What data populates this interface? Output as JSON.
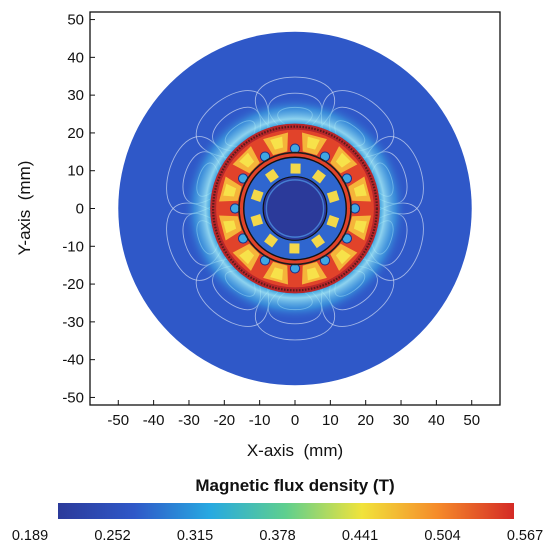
{
  "chart_data": {
    "type": "heatmap",
    "subject": "2D magnetic field plot of a 12-slot stator / 10-pole rotor machine cross-section",
    "xlabel": "X-axis  (mm)",
    "ylabel": "Y-axis  (mm)",
    "xlim": [
      -58,
      58
    ],
    "ylim": [
      -52,
      52
    ],
    "xticks": [
      -50,
      -40,
      -30,
      -20,
      -10,
      0,
      10,
      20,
      30,
      40,
      50
    ],
    "yticks": [
      -50,
      -40,
      -30,
      -20,
      -10,
      0,
      10,
      20,
      30,
      40,
      50
    ],
    "grid": false,
    "domain_outer_radius_mm": 50,
    "stator_outer_radius_mm": 24,
    "stator_inner_radius_mm": 16,
    "rotor_outer_radius_mm": 14.5,
    "rotor_bore_radius_mm": 9,
    "stator_slots": 12,
    "rotor_slots": 10,
    "flux_line_lobes": 10,
    "colorbar": {
      "title": "Magnetic flux density (T)",
      "min": 0.189,
      "max": 0.567,
      "ticks": [
        "0.189",
        "0.252",
        "0.315",
        "0.378",
        "0.441",
        "0.504",
        "0.567"
      ],
      "colormap": [
        "#2b3a9a",
        "#2f58c8",
        "#27a9e1",
        "#5fcf8e",
        "#f1e33b",
        "#f58a2a",
        "#d42a26"
      ]
    }
  }
}
